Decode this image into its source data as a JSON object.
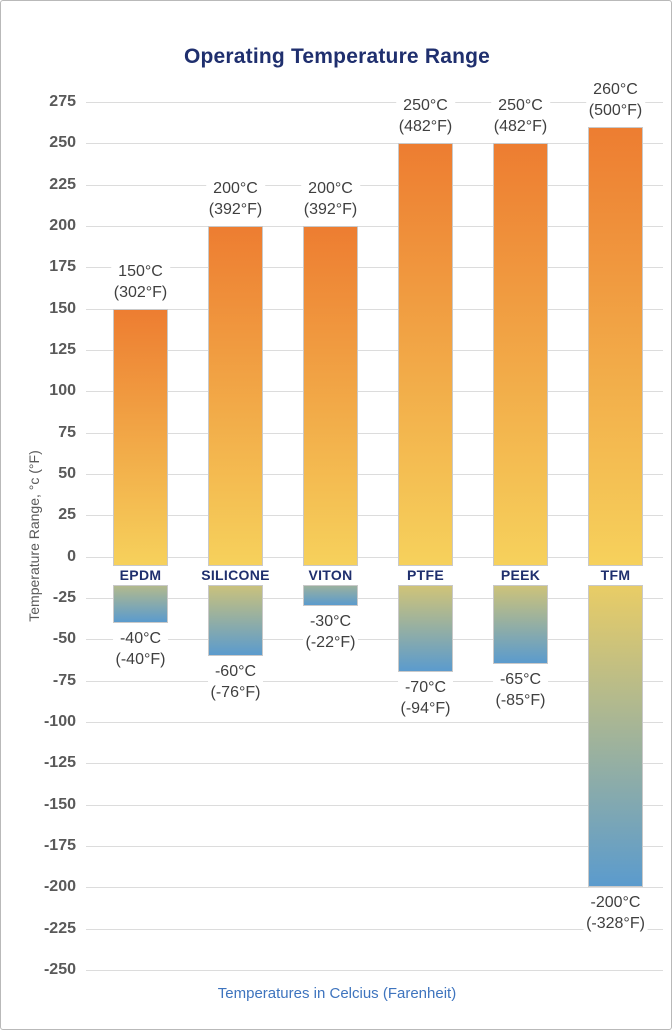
{
  "chart_data": {
    "type": "bar",
    "title": "Operating Temperature Range",
    "ylabel": "Temperature Range, °c (°F)",
    "xlabel": "Temperatures in Celcius (Farenheit)",
    "ylim": [
      -250,
      275
    ],
    "ytick_step": 25,
    "grid": "horizontal",
    "legend": "none",
    "categories": [
      "EPDM",
      "SILICONE",
      "VITON",
      "PTFE",
      "PEEK",
      "TFM"
    ],
    "series": [
      {
        "name": "max_temp_c",
        "values": [
          150,
          200,
          200,
          250,
          250,
          260
        ]
      },
      {
        "name": "min_temp_c",
        "values": [
          -40,
          -60,
          -30,
          -70,
          -65,
          -200
        ]
      }
    ],
    "bar_labels": {
      "max": [
        [
          "150°C",
          "(302°F)"
        ],
        [
          "200°C",
          "(392°F)"
        ],
        [
          "200°C",
          "(392°F)"
        ],
        [
          "250°C",
          "(482°F)"
        ],
        [
          "250°C",
          "(482°F)"
        ],
        [
          "260°C",
          "(500°F)"
        ]
      ],
      "min": [
        [
          "-40°C",
          "(-40°F)"
        ],
        [
          "-60°C",
          "(-76°F)"
        ],
        [
          "-30°C",
          "(-22°F)"
        ],
        [
          "-70°C",
          "(-94°F)"
        ],
        [
          "-65°C",
          "(-85°F)"
        ],
        [
          "-200°C",
          "(-328°F)"
        ]
      ]
    },
    "colors": {
      "bar_top_orange": "#ED7D31",
      "bar_zero_yellow": "#F6D15C",
      "bar_min_blue": "#5B9BCD",
      "title_navy": "#1F2F6E",
      "tick_gray": "#595959",
      "value_label_gray": "#3F3F3F",
      "caption_blue": "#3E74BE",
      "gridline_gray": "#DCDCDC"
    }
  }
}
